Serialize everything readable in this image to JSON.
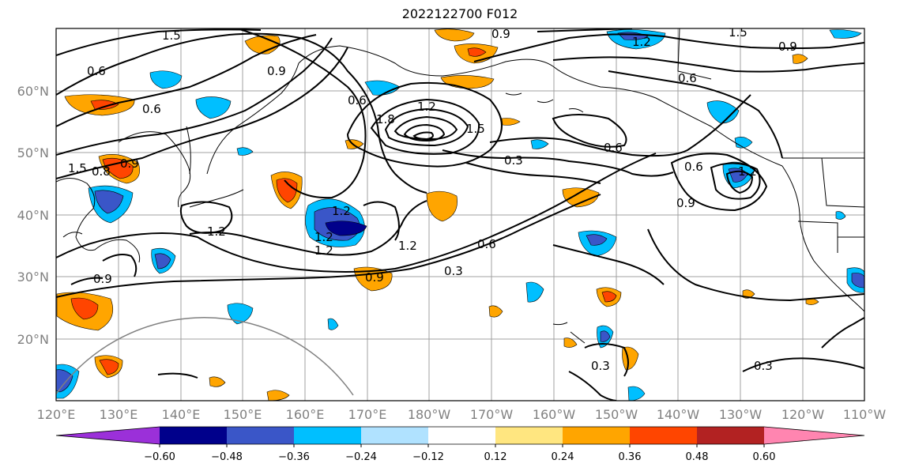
{
  "title": "2022122700 F012",
  "lat_labels": [
    "60°N",
    "50°N",
    "40°N",
    "30°N",
    "20°N"
  ],
  "lon_labels": [
    "120°E",
    "130°E",
    "140°E",
    "150°E",
    "160°E",
    "170°E",
    "180°W",
    "170°W",
    "160°W",
    "150°W",
    "140°W",
    "130°W",
    "120°W",
    "110°W"
  ],
  "colorbar": {
    "ticks": [
      "−0.60",
      "−0.48",
      "−0.36",
      "−0.24",
      "−0.12",
      "0.12",
      "0.24",
      "0.36",
      "0.48",
      "0.60"
    ],
    "colors": [
      "#9b30d9",
      "#00008b",
      "#3a56c8",
      "#00bfff",
      "#b0e2ff",
      "#ffffff",
      "#ffe680",
      "#ffa500",
      "#ff4500",
      "#b22222",
      "#ff85b0"
    ]
  },
  "contour_labels": [
    "1.5",
    "0.9",
    "0.6",
    "0.9",
    "0.6",
    "1.2",
    "0.9",
    "1.5",
    "0.6",
    "0.6",
    "1.2",
    "1.8",
    "1.5",
    "0.3",
    "0.6",
    "0.6",
    "1.2",
    "0.9",
    "1.2",
    "1.5",
    "0.8",
    "1.2",
    "1.2",
    "1.2",
    "0.9",
    "0.6",
    "0.3",
    "0.9",
    "0.3",
    "0.3",
    "1.2",
    "0.9"
  ]
}
